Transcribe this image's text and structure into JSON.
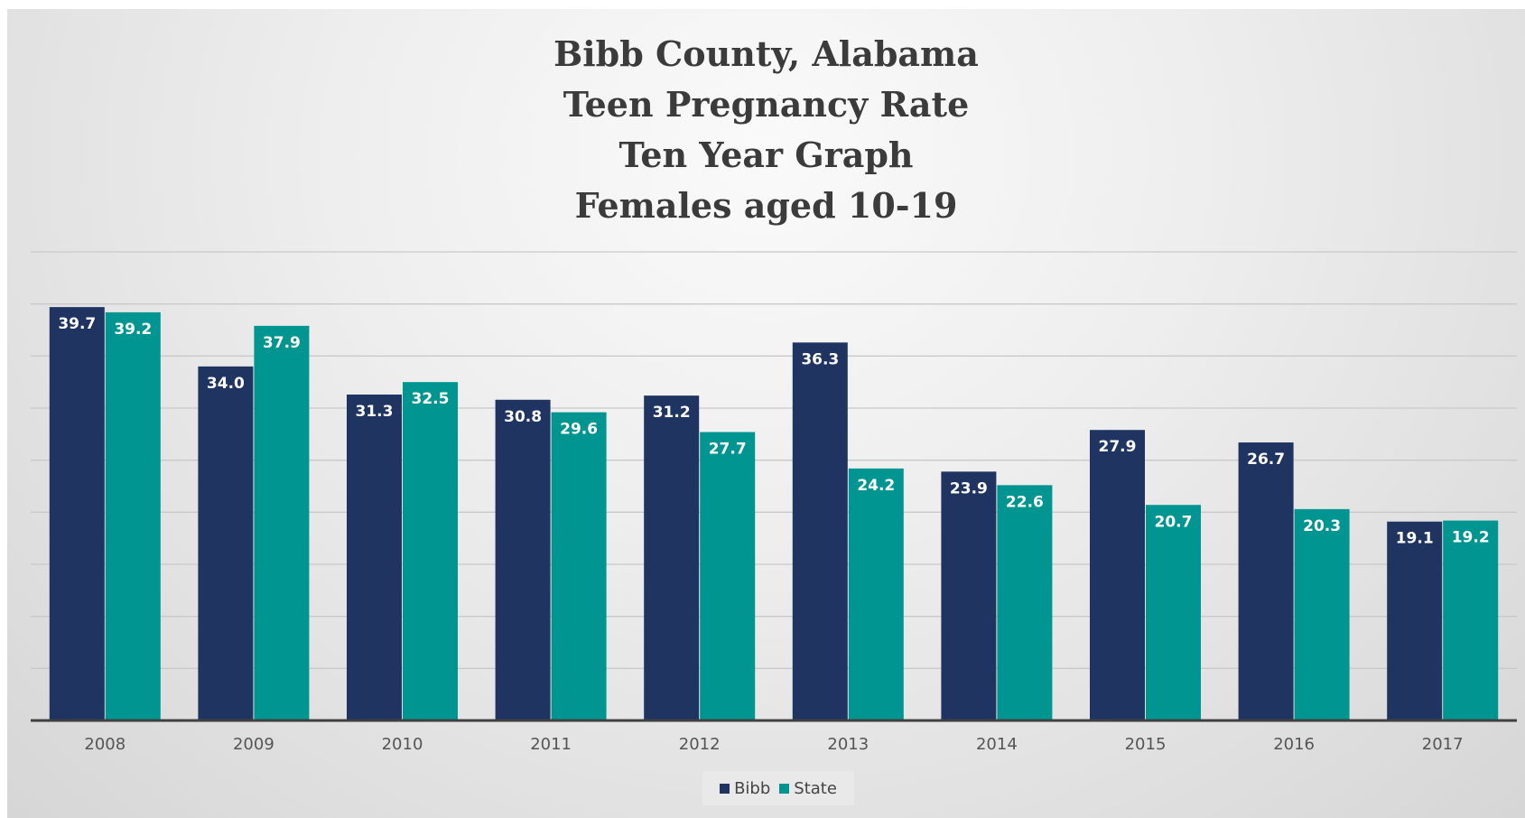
{
  "chart_data": {
    "type": "bar",
    "title": [
      "Bibb County, Alabama",
      "Teen Pregnancy Rate",
      "Ten Year Graph",
      "Females aged 10-19"
    ],
    "categories": [
      "2008",
      "2009",
      "2010",
      "2011",
      "2012",
      "2013",
      "2014",
      "2015",
      "2016",
      "2017"
    ],
    "series": [
      {
        "name": "Bibb",
        "color": "#1f3461",
        "values": [
          39.7,
          34.0,
          31.3,
          30.8,
          31.2,
          36.3,
          23.9,
          27.9,
          26.7,
          19.1
        ]
      },
      {
        "name": "State",
        "color": "#009591",
        "values": [
          39.2,
          37.9,
          32.5,
          29.6,
          27.7,
          24.2,
          22.6,
          20.7,
          20.3,
          19.2
        ]
      }
    ],
    "ylim": [
      0,
      45
    ],
    "gridlines": true,
    "y_tick_labels_shown": false,
    "data_labels": true,
    "legend_position": "bottom",
    "xlabel": "",
    "ylabel": ""
  }
}
